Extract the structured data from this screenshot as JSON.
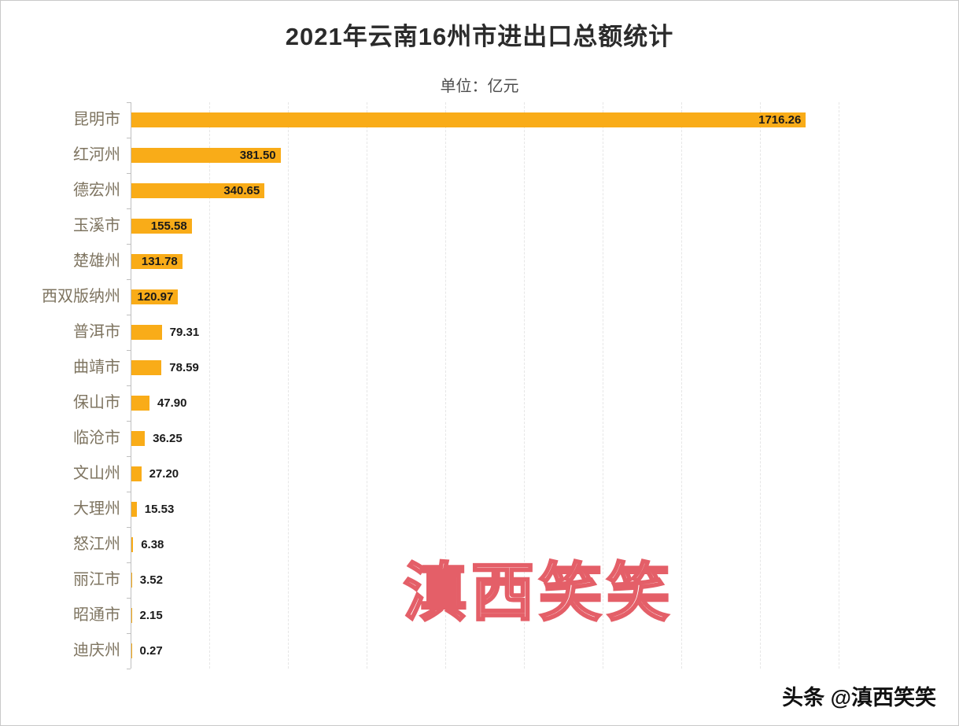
{
  "title": "2021年云南16州市进出口总额统计",
  "subtitle": "单位：亿元",
  "watermark": "滇西笑笑",
  "credit": "头条 @滇西笑笑",
  "colors": {
    "bar": "#f9ac18",
    "category_label": "#7e7460",
    "title_text": "#2b2b2b",
    "watermark_outline": "#e45f68",
    "value_label": "#1a1a1a"
  },
  "chart_data": {
    "type": "bar",
    "orientation": "horizontal",
    "title": "2021年云南16州市进出口总额统计",
    "unit_label": "单位：亿元",
    "categories": [
      "昆明市",
      "红河州",
      "德宏州",
      "玉溪市",
      "楚雄州",
      "西双版纳州",
      "普洱市",
      "曲靖市",
      "保山市",
      "临沧市",
      "文山州",
      "大理州",
      "怒江州",
      "丽江市",
      "昭通市",
      "迪庆州"
    ],
    "values": [
      1716.26,
      381.5,
      340.65,
      155.58,
      131.78,
      120.97,
      79.31,
      78.59,
      47.9,
      36.25,
      27.2,
      15.53,
      6.38,
      3.52,
      2.15,
      0.27
    ],
    "value_labels": [
      "1716.26",
      "381.50",
      "340.65",
      "155.58",
      "131.78",
      "120.97",
      "79.31",
      "78.59",
      "47.90",
      "36.25",
      "27.20",
      "15.53",
      "6.38",
      "3.52",
      "2.15",
      "0.27"
    ],
    "xlim": [
      0,
      1800
    ],
    "gridline_step": 200,
    "grid": true,
    "legend": "none",
    "ylabel": "",
    "xlabel": ""
  }
}
